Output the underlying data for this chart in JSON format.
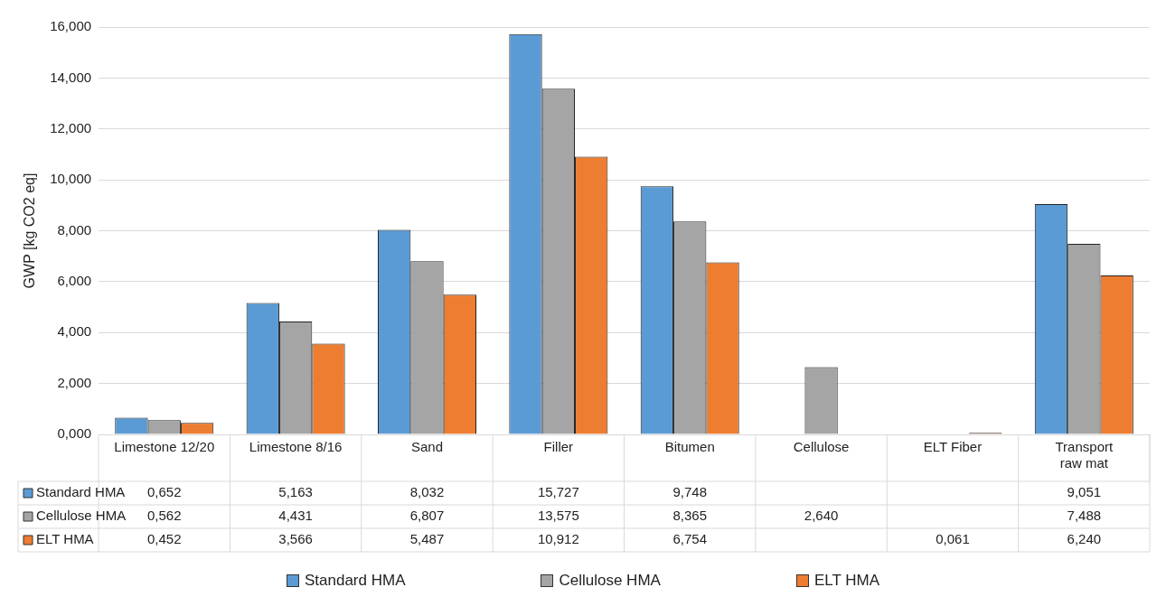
{
  "chart_data": {
    "type": "bar",
    "ylabel": "GWP [kg CO2 eq]",
    "categories": [
      "Limestone 12/20",
      "Limestone 8/16",
      "Sand",
      "Filler",
      "Bitumen",
      "Cellulose",
      "ELT Fiber",
      "Transport raw mat"
    ],
    "series": [
      {
        "name": "Standard HMA",
        "color": "#5b9bd5",
        "values": [
          0.652,
          5.163,
          8.032,
          15.727,
          9.748,
          null,
          null,
          9.051
        ],
        "value_labels": [
          "0,652",
          "5,163",
          "8,032",
          "15,727",
          "9,748",
          null,
          null,
          "9,051"
        ]
      },
      {
        "name": "Cellulose HMA",
        "color": "#a5a5a5",
        "values": [
          0.562,
          4.431,
          6.807,
          13.575,
          8.365,
          2.64,
          null,
          7.488
        ],
        "value_labels": [
          "0,562",
          "4,431",
          "6,807",
          "13,575",
          "8,365",
          "2,640",
          null,
          "7,488"
        ]
      },
      {
        "name": "ELT HMA",
        "color": "#ed7d31",
        "values": [
          0.452,
          3.566,
          5.487,
          10.912,
          6.754,
          null,
          0.061,
          6.24
        ],
        "value_labels": [
          "0,452",
          "3,566",
          "5,487",
          "10,912",
          "6,754",
          null,
          "0,061",
          "6,240"
        ]
      }
    ],
    "ylim": [
      0,
      16
    ],
    "yticks": [
      {
        "value": 0,
        "label": "0,000"
      },
      {
        "value": 2,
        "label": "2,000"
      },
      {
        "value": 4,
        "label": "4,000"
      },
      {
        "value": 6,
        "label": "6,000"
      },
      {
        "value": 8,
        "label": "8,000"
      },
      {
        "value": 10,
        "label": "10,000"
      },
      {
        "value": 12,
        "label": "12,000"
      },
      {
        "value": 14,
        "label": "14,000"
      },
      {
        "value": 16,
        "label": "16,000"
      }
    ],
    "grid": "y",
    "legend": "bottom"
  }
}
